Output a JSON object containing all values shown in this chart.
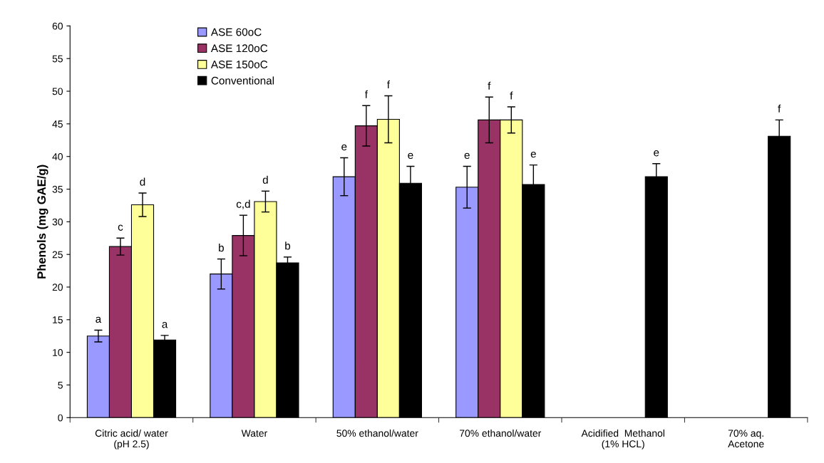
{
  "chart_data": {
    "type": "bar",
    "ylabel": "Phenols (mg GAE/g)",
    "categories": [
      "Citric acid/ water\n(pH 2.5)",
      "Water",
      "50% ethanol/water",
      "70% ethanol/water",
      "Acidified  Methanol\n(1% HCL)",
      "70% aq.\nAcetone"
    ],
    "series": [
      {
        "name": "ASE 60oC",
        "color": "#9999ff",
        "values": [
          12.5,
          22.0,
          36.9,
          35.3,
          null,
          null
        ],
        "errors": [
          0.9,
          2.3,
          2.9,
          3.2,
          null,
          null
        ],
        "value_labels": [
          "a",
          "b",
          "e",
          "e",
          null,
          null
        ]
      },
      {
        "name": "ASE 120oC",
        "color": "#993366",
        "values": [
          26.2,
          27.9,
          44.7,
          45.6,
          null,
          null
        ],
        "errors": [
          1.3,
          3.1,
          3.1,
          3.5,
          null,
          null
        ],
        "value_labels": [
          "c",
          "c,d",
          "f",
          "f",
          null,
          null
        ]
      },
      {
        "name": "ASE 150oC",
        "color": "#ffff99",
        "values": [
          32.6,
          33.1,
          45.7,
          45.6,
          null,
          null
        ],
        "errors": [
          1.8,
          1.6,
          3.6,
          2.0,
          null,
          null
        ],
        "value_labels": [
          "d",
          "d",
          "f",
          "f",
          null,
          null
        ]
      },
      {
        "name": "Conventional",
        "color": "#000000",
        "values": [
          11.9,
          23.7,
          35.9,
          35.7,
          36.9,
          43.1
        ],
        "errors": [
          0.7,
          0.9,
          2.6,
          3.0,
          2.0,
          2.5
        ],
        "value_labels": [
          "a",
          "b",
          "e",
          "e",
          "e",
          "f"
        ]
      }
    ],
    "ylim": [
      0,
      60
    ],
    "yticks": [
      0,
      5,
      10,
      15,
      20,
      25,
      30,
      35,
      40,
      45,
      50,
      55,
      60
    ],
    "grid": false,
    "legend": "top left"
  }
}
